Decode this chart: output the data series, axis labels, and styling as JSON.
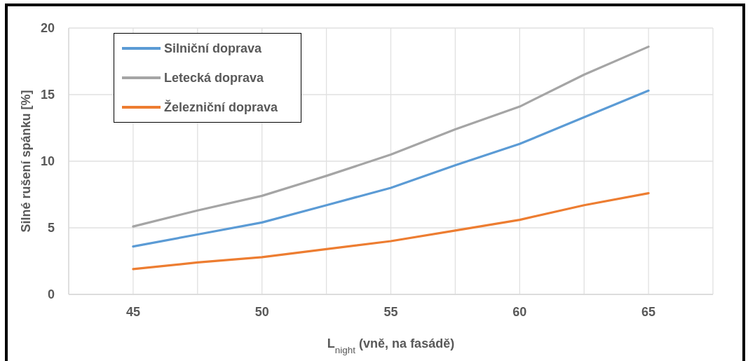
{
  "chart_data": {
    "type": "line",
    "xlabel": "L$_{night}$ (vně, na fasádě)",
    "ylabel": "Silné rušení spánku [%]",
    "x": [
      45,
      47.5,
      50,
      52.5,
      55,
      57.5,
      60,
      62.5,
      65
    ],
    "series": [
      {
        "name": "Silniční doprava",
        "color": "#5b9bd5",
        "values": [
          3.6,
          4.5,
          5.4,
          6.7,
          8.0,
          9.7,
          11.3,
          13.3,
          15.3
        ]
      },
      {
        "name": "Letecká doprava",
        "color": "#a5a5a5",
        "values": [
          5.1,
          6.3,
          7.4,
          8.9,
          10.5,
          12.4,
          14.1,
          16.5,
          18.6
        ]
      },
      {
        "name": "Železniční doprava",
        "color": "#ed7d31",
        "values": [
          1.9,
          2.4,
          2.8,
          3.4,
          4.0,
          4.8,
          5.6,
          6.7,
          7.6
        ]
      }
    ],
    "xlim": [
      42.5,
      67.5
    ],
    "xticks": [
      {
        "value": 42.5,
        "label": null
      },
      45,
      {
        "value": 47.5,
        "label": null
      },
      50,
      {
        "value": 52.5,
        "label": null
      },
      55,
      {
        "value": 57.5,
        "label": null
      },
      60,
      {
        "value": 62.5,
        "label": null
      },
      65,
      {
        "value": 67.5,
        "label": null
      }
    ],
    "ylim": [
      0,
      20
    ],
    "yticks": [
      0,
      5,
      10,
      15,
      20
    ],
    "grid": true,
    "legend": "top left",
    "marker": "none",
    "line_style": "solid"
  }
}
